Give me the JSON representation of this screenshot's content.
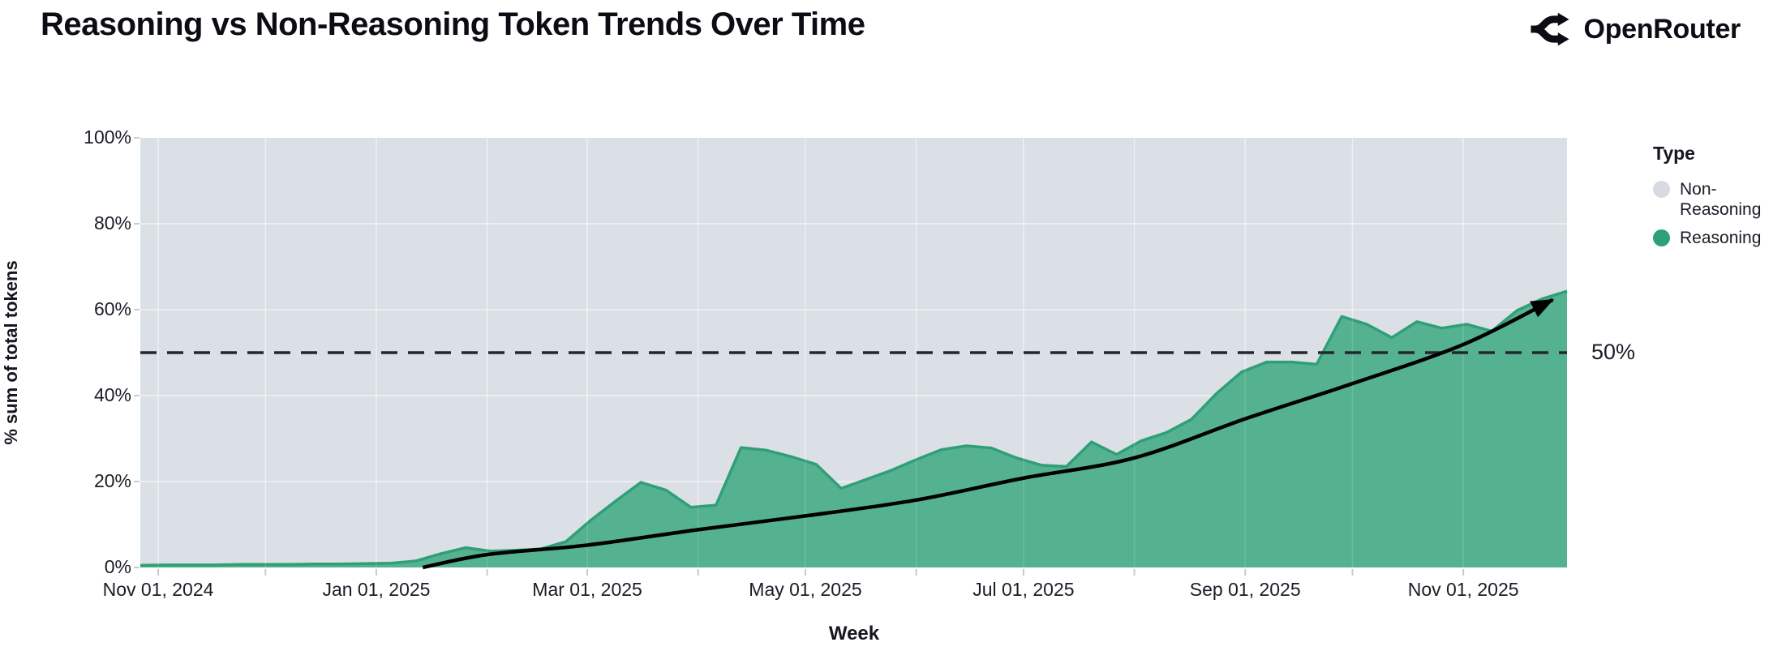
{
  "header": {
    "title": "Reasoning vs Non-Reasoning Token Trends Over Time",
    "brand": "OpenRouter"
  },
  "chart_data": {
    "type": "area",
    "stacked_percent": true,
    "title": "Reasoning vs Non-Reasoning Token Trends Over Time",
    "xlabel": "Week",
    "ylabel": "% sum of total tokens",
    "ylim": [
      0,
      100
    ],
    "grid": true,
    "legend_position": "right",
    "legend": {
      "title": "Type",
      "items": [
        {
          "label": "Non-Reasoning",
          "color": "#d8dae1"
        },
        {
          "label": "Reasoning",
          "color": "#2fa077"
        }
      ]
    },
    "colors": {
      "reasoning_fill": "#55b291",
      "reasoning_edge": "#2f9f76",
      "non_reasoning_fill": "#dbdfe6",
      "gridline": "#ffffff",
      "dashed_reference": "#26262f",
      "trend_arrow": "#000000",
      "tick": "#c7cad2"
    },
    "y_ticks": [
      {
        "value": 0,
        "label": "0%"
      },
      {
        "value": 20,
        "label": "20%"
      },
      {
        "value": 40,
        "label": "40%"
      },
      {
        "value": 60,
        "label": "60%"
      },
      {
        "value": 80,
        "label": "80%"
      },
      {
        "value": 100,
        "label": "100%"
      }
    ],
    "x_domain": [
      "2024-10-27",
      "2025-11-30"
    ],
    "x_ticks": [
      {
        "date": "2024-11-01",
        "label": "Nov 01, 2024"
      },
      {
        "date": "2025-01-01",
        "label": "Jan 01, 2025"
      },
      {
        "date": "2025-03-01",
        "label": "Mar 01, 2025"
      },
      {
        "date": "2025-05-01",
        "label": "May 01, 2025"
      },
      {
        "date": "2025-07-01",
        "label": "Jul 01, 2025"
      },
      {
        "date": "2025-09-01",
        "label": "Sep 01, 2025"
      },
      {
        "date": "2025-11-01",
        "label": "Nov 01, 2025"
      }
    ],
    "x_minor_ticks": [
      "2024-12-01",
      "2025-02-01",
      "2025-04-01",
      "2025-06-01",
      "2025-08-01",
      "2025-10-01"
    ],
    "reference_line": {
      "value": 50,
      "label": "50%"
    },
    "series": [
      {
        "name": "Reasoning",
        "weeks": [
          "2024-10-27",
          "2024-11-03",
          "2024-11-10",
          "2024-11-17",
          "2024-11-24",
          "2024-12-01",
          "2024-12-08",
          "2024-12-15",
          "2024-12-22",
          "2024-12-29",
          "2025-01-05",
          "2025-01-12",
          "2025-01-19",
          "2025-01-26",
          "2025-02-02",
          "2025-02-09",
          "2025-02-16",
          "2025-02-23",
          "2025-03-02",
          "2025-03-09",
          "2025-03-16",
          "2025-03-23",
          "2025-03-30",
          "2025-04-06",
          "2025-04-13",
          "2025-04-20",
          "2025-04-27",
          "2025-05-04",
          "2025-05-11",
          "2025-05-18",
          "2025-05-25",
          "2025-06-01",
          "2025-06-08",
          "2025-06-15",
          "2025-06-22",
          "2025-06-29",
          "2025-07-06",
          "2025-07-13",
          "2025-07-20",
          "2025-07-27",
          "2025-08-03",
          "2025-08-10",
          "2025-08-17",
          "2025-08-24",
          "2025-08-31",
          "2025-09-07",
          "2025-09-14",
          "2025-09-21",
          "2025-09-28",
          "2025-10-05",
          "2025-10-12",
          "2025-10-19",
          "2025-10-26",
          "2025-11-02",
          "2025-11-09",
          "2025-11-16",
          "2025-11-23",
          "2025-11-30"
        ],
        "values": [
          0.5,
          0.6,
          0.6,
          0.6,
          0.7,
          0.7,
          0.7,
          0.8,
          0.8,
          0.9,
          1.0,
          1.5,
          3.2,
          4.6,
          3.8,
          4.0,
          4.3,
          6.0,
          11.0,
          15.5,
          19.8,
          18.0,
          14.0,
          14.5,
          27.9,
          27.3,
          25.8,
          24.0,
          18.4,
          20.5,
          22.6,
          25.1,
          27.4,
          28.3,
          27.8,
          25.5,
          23.8,
          23.5,
          29.2,
          26.3,
          29.5,
          31.4,
          34.5,
          40.5,
          45.5,
          47.8,
          47.8,
          47.3,
          58.4,
          56.6,
          53.5,
          57.2,
          55.7,
          56.6,
          55.0,
          59.8,
          62.5,
          64.3
        ]
      },
      {
        "name": "Non-Reasoning",
        "values_rule": "complement: 100 minus Reasoning (stacked to 100%)"
      }
    ],
    "trend_arrow": {
      "anchors": [
        [
          "2025-01-14",
          0
        ],
        [
          "2025-02-01",
          3
        ],
        [
          "2025-03-01",
          5.2
        ],
        [
          "2025-04-01",
          8.8
        ],
        [
          "2025-05-01",
          12
        ],
        [
          "2025-06-01",
          15.7
        ],
        [
          "2025-07-01",
          20.8
        ],
        [
          "2025-08-01",
          25.5
        ],
        [
          "2025-09-01",
          34.6
        ],
        [
          "2025-10-01",
          42.8
        ],
        [
          "2025-11-01",
          51.9
        ],
        [
          "2025-11-26",
          62.3
        ]
      ]
    }
  }
}
